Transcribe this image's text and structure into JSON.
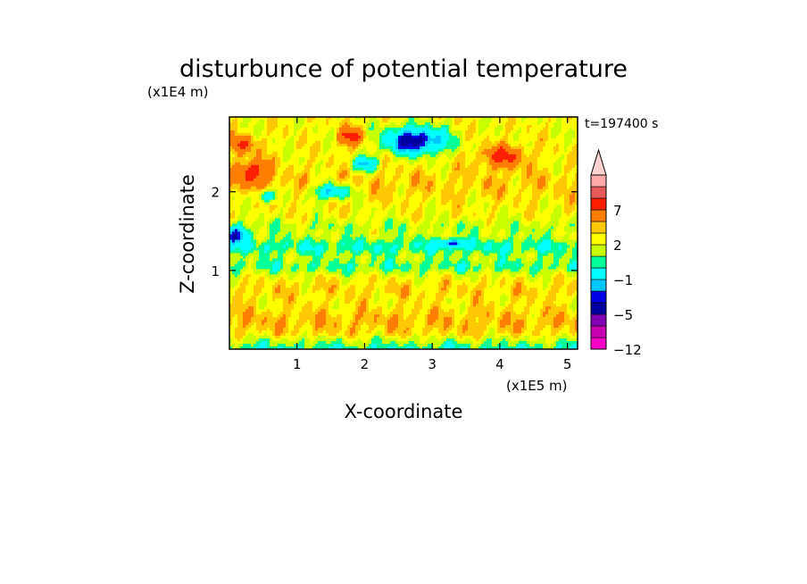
{
  "chart_data": {
    "type": "heatmap",
    "title": "disturbunce of potential temperature",
    "xlabel": "X-coordinate",
    "ylabel": "Z-coordinate",
    "x_multiplier_label": "(x1E5 m)",
    "y_multiplier_label": "(x1E4 m)",
    "time_label": "t=197400 s",
    "x_tick_labels": [
      "1",
      "2",
      "3",
      "4",
      "5"
    ],
    "y_tick_labels": [
      "1",
      "2"
    ],
    "xlim": [
      0,
      5.15
    ],
    "ylim": [
      0,
      2.95
    ],
    "x_ticks": [
      1,
      2,
      3,
      4,
      5
    ],
    "y_ticks": [
      1,
      2
    ],
    "colorbar": {
      "levels": [
        -12,
        -10,
        -8,
        -5,
        -4,
        -3,
        -1,
        0,
        1,
        2,
        3,
        5,
        7,
        8,
        10
      ],
      "colors": [
        "#ff00c8",
        "#c800b4",
        "#8200b4",
        "#0000a0",
        "#0000e6",
        "#00c8ff",
        "#00ffff",
        "#00ff96",
        "#c8ff00",
        "#ffff00",
        "#ffc800",
        "#ff7d00",
        "#ff1e00",
        "#e65a5a",
        "#ffaaaa",
        "#ffd2d2"
      ],
      "tick_labels": [
        "-12",
        "-5",
        "-1",
        "2",
        "7"
      ],
      "tick_values": [
        -12,
        -5,
        -1,
        2,
        7
      ],
      "extend": "max"
    },
    "fields": {
      "background_level": 1.5,
      "bands": [
        {
          "z_center": 0.35,
          "z_width": 0.18,
          "amplitude": 1.1
        },
        {
          "z_center": 0.75,
          "z_width": 0.12,
          "amplitude": 0.6
        },
        {
          "z_center": 1.05,
          "z_width": 0.1,
          "amplitude": -1.8
        },
        {
          "z_center": 1.3,
          "z_width": 0.12,
          "amplitude": -2.3
        },
        {
          "z_center": 1.55,
          "z_width": 0.1,
          "amplitude": -1.0
        },
        {
          "z_center": 2.1,
          "z_width": 0.2,
          "amplitude": 0.8
        }
      ],
      "anomalies": [
        {
          "x": 2.75,
          "z": 2.65,
          "rx": 0.45,
          "rz": 0.17,
          "value": -7.5
        },
        {
          "x": 0.35,
          "z": 2.25,
          "rx": 0.25,
          "rz": 0.16,
          "value": 4.5
        },
        {
          "x": 0.2,
          "z": 2.6,
          "rx": 0.2,
          "rz": 0.12,
          "value": 3.5
        },
        {
          "x": 4.05,
          "z": 2.45,
          "rx": 0.35,
          "rz": 0.14,
          "value": 4.0
        },
        {
          "x": 1.5,
          "z": 2.0,
          "rx": 0.3,
          "rz": 0.1,
          "value": -5.0
        },
        {
          "x": 2.0,
          "z": 2.35,
          "rx": 0.2,
          "rz": 0.09,
          "value": -4.5
        },
        {
          "x": 0.55,
          "z": 1.95,
          "rx": 0.15,
          "rz": 0.08,
          "value": -4.5
        },
        {
          "x": 0.1,
          "z": 1.45,
          "rx": 0.2,
          "rz": 0.1,
          "value": -5.0
        },
        {
          "x": 3.3,
          "z": 1.35,
          "rx": 0.2,
          "rz": 0.05,
          "value": -4.5
        },
        {
          "x": 1.8,
          "z": 2.7,
          "rx": 0.2,
          "rz": 0.12,
          "value": 4.0
        }
      ]
    }
  }
}
